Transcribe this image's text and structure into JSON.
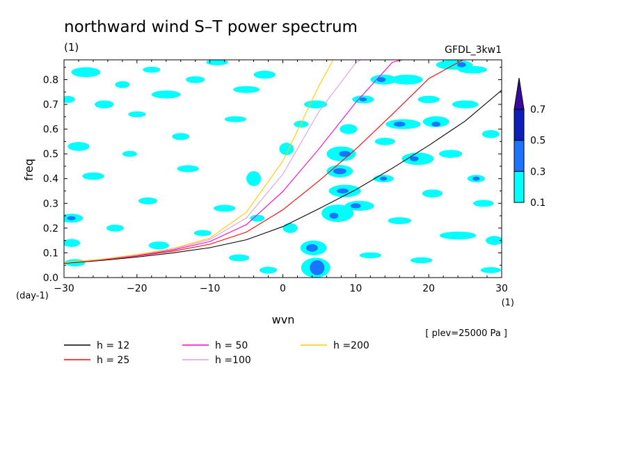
{
  "chart_data": {
    "type": "heatmap",
    "title": "northward wind S–T power spectrum",
    "unit_label": "(1)",
    "model_label": "GFDL_3kw1",
    "xlabel": "wvn",
    "ylabel": "freq",
    "x_unit": "(1)",
    "y_unit": "(day-1)",
    "level_label": "[ plev=25000 Pa ]",
    "xlim": [
      -30,
      30
    ],
    "ylim": [
      0,
      0.88
    ],
    "x_ticks": [
      -30,
      -20,
      -10,
      0,
      10,
      20,
      30
    ],
    "x_tick_labels": [
      "−30",
      "−20",
      "−10",
      "0",
      "10",
      "20",
      "30"
    ],
    "y_ticks": [
      0.0,
      0.1,
      0.2,
      0.3,
      0.4,
      0.5,
      0.6,
      0.7,
      0.8
    ],
    "y_tick_labels": [
      "0.0",
      "0.1",
      "0.2",
      "0.3",
      "0.4",
      "0.5",
      "0.6",
      "0.7",
      "0.8"
    ],
    "colorbar": {
      "levels": [
        "0.1",
        "0.3",
        "0.5",
        "0.7"
      ],
      "colors": [
        "#00ffff",
        "#1a74ff",
        "#0b1fb8",
        "#3a0aa0"
      ],
      "extend": "max"
    },
    "contour_blobs": [
      {
        "x": 4.7,
        "y": 0.04,
        "rx": 1.0,
        "ry": 0.03,
        "level": 2
      },
      {
        "x": 4.5,
        "y": 0.04,
        "rx": 2.0,
        "ry": 0.04,
        "level": 1
      },
      {
        "x": 4.0,
        "y": 0.12,
        "rx": 0.8,
        "ry": 0.015,
        "level": 2
      },
      {
        "x": 4.2,
        "y": 0.12,
        "rx": 1.8,
        "ry": 0.03,
        "level": 1
      },
      {
        "x": 7.8,
        "y": 0.43,
        "rx": 0.9,
        "ry": 0.012,
        "level": 2
      },
      {
        "x": 7.8,
        "y": 0.43,
        "rx": 1.8,
        "ry": 0.025,
        "level": 1
      },
      {
        "x": 8.5,
        "y": 0.5,
        "rx": 0.8,
        "ry": 0.012,
        "level": 2
      },
      {
        "x": 8.0,
        "y": 0.5,
        "rx": 2.0,
        "ry": 0.03,
        "level": 1
      },
      {
        "x": 8.2,
        "y": 0.35,
        "rx": 0.8,
        "ry": 0.01,
        "level": 2
      },
      {
        "x": 8.5,
        "y": 0.35,
        "rx": 2.2,
        "ry": 0.025,
        "level": 1
      },
      {
        "x": 7.0,
        "y": 0.25,
        "rx": 0.6,
        "ry": 0.012,
        "level": 2
      },
      {
        "x": 7.5,
        "y": 0.26,
        "rx": 2.2,
        "ry": 0.035,
        "level": 1
      },
      {
        "x": 13.5,
        "y": 0.8,
        "rx": 0.6,
        "ry": 0.01,
        "level": 2
      },
      {
        "x": 13.8,
        "y": 0.8,
        "rx": 1.8,
        "ry": 0.02,
        "level": 1
      },
      {
        "x": 16.0,
        "y": 0.62,
        "rx": 0.8,
        "ry": 0.01,
        "level": 2
      },
      {
        "x": 16.5,
        "y": 0.62,
        "rx": 2.4,
        "ry": 0.02,
        "level": 1
      },
      {
        "x": 21.0,
        "y": 0.62,
        "rx": 0.6,
        "ry": 0.01,
        "level": 2
      },
      {
        "x": 21.0,
        "y": 0.63,
        "rx": 1.8,
        "ry": 0.022,
        "level": 1
      },
      {
        "x": 24.5,
        "y": 0.86,
        "rx": 0.6,
        "ry": 0.01,
        "level": 2
      },
      {
        "x": 23.5,
        "y": 0.86,
        "rx": 2.5,
        "ry": 0.02,
        "level": 1
      },
      {
        "x": 18.0,
        "y": 0.48,
        "rx": 0.6,
        "ry": 0.01,
        "level": 2
      },
      {
        "x": 18.5,
        "y": 0.48,
        "rx": 2.2,
        "ry": 0.025,
        "level": 1
      },
      {
        "x": 26.5,
        "y": 0.4,
        "rx": 0.5,
        "ry": 0.008,
        "level": 2
      },
      {
        "x": 26.5,
        "y": 0.4,
        "rx": 1.2,
        "ry": 0.015,
        "level": 1
      },
      {
        "x": 13.8,
        "y": 0.4,
        "rx": 0.5,
        "ry": 0.008,
        "level": 2
      },
      {
        "x": 13.8,
        "y": 0.4,
        "rx": 1.4,
        "ry": 0.015,
        "level": 1
      },
      {
        "x": 10.0,
        "y": 0.29,
        "rx": 0.7,
        "ry": 0.01,
        "level": 2
      },
      {
        "x": 10.5,
        "y": 0.29,
        "rx": 2.0,
        "ry": 0.02,
        "level": 1
      },
      {
        "x": -29.0,
        "y": 0.24,
        "rx": 0.6,
        "ry": 0.008,
        "level": 2
      },
      {
        "x": -29.0,
        "y": 0.24,
        "rx": 1.6,
        "ry": 0.018,
        "level": 1
      },
      {
        "x": 11.0,
        "y": 0.72,
        "rx": 0.5,
        "ry": 0.008,
        "level": 2
      },
      {
        "x": 11.0,
        "y": 0.72,
        "rx": 1.5,
        "ry": 0.016,
        "level": 1
      },
      {
        "x": -27.0,
        "y": 0.83,
        "rx": 2.0,
        "ry": 0.02,
        "level": 1
      },
      {
        "x": -22.0,
        "y": 0.78,
        "rx": 1.0,
        "ry": 0.014,
        "level": 1
      },
      {
        "x": -29.5,
        "y": 0.72,
        "rx": 1.0,
        "ry": 0.014,
        "level": 1
      },
      {
        "x": -28.0,
        "y": 0.53,
        "rx": 1.5,
        "ry": 0.018,
        "level": 1
      },
      {
        "x": -26.0,
        "y": 0.41,
        "rx": 1.5,
        "ry": 0.015,
        "level": 1
      },
      {
        "x": -29.0,
        "y": 0.14,
        "rx": 1.2,
        "ry": 0.016,
        "level": 1
      },
      {
        "x": -28.5,
        "y": 0.06,
        "rx": 1.4,
        "ry": 0.015,
        "level": 1
      },
      {
        "x": -24.5,
        "y": 0.7,
        "rx": 1.3,
        "ry": 0.016,
        "level": 1
      },
      {
        "x": -18.0,
        "y": 0.84,
        "rx": 1.2,
        "ry": 0.012,
        "level": 1
      },
      {
        "x": -16.0,
        "y": 0.74,
        "rx": 2.0,
        "ry": 0.016,
        "level": 1
      },
      {
        "x": -12.0,
        "y": 0.8,
        "rx": 1.3,
        "ry": 0.014,
        "level": 1
      },
      {
        "x": -20.0,
        "y": 0.66,
        "rx": 1.2,
        "ry": 0.012,
        "level": 1
      },
      {
        "x": -14.0,
        "y": 0.57,
        "rx": 1.2,
        "ry": 0.014,
        "level": 1
      },
      {
        "x": -21.0,
        "y": 0.5,
        "rx": 1.0,
        "ry": 0.012,
        "level": 1
      },
      {
        "x": -13.0,
        "y": 0.44,
        "rx": 1.5,
        "ry": 0.014,
        "level": 1
      },
      {
        "x": -18.5,
        "y": 0.31,
        "rx": 1.3,
        "ry": 0.014,
        "level": 1
      },
      {
        "x": -23.0,
        "y": 0.2,
        "rx": 1.2,
        "ry": 0.014,
        "level": 1
      },
      {
        "x": -17.0,
        "y": 0.13,
        "rx": 1.4,
        "ry": 0.016,
        "level": 1
      },
      {
        "x": -9.0,
        "y": 0.87,
        "rx": 1.5,
        "ry": 0.012,
        "level": 1
      },
      {
        "x": -5.0,
        "y": 0.76,
        "rx": 1.8,
        "ry": 0.014,
        "level": 1
      },
      {
        "x": -2.5,
        "y": 0.82,
        "rx": 1.5,
        "ry": 0.016,
        "level": 1
      },
      {
        "x": -6.5,
        "y": 0.64,
        "rx": 1.5,
        "ry": 0.012,
        "level": 1
      },
      {
        "x": 0.5,
        "y": 0.52,
        "rx": 1.0,
        "ry": 0.025,
        "level": 1
      },
      {
        "x": -4.0,
        "y": 0.4,
        "rx": 1.0,
        "ry": 0.03,
        "level": 1
      },
      {
        "x": -8.0,
        "y": 0.28,
        "rx": 1.5,
        "ry": 0.014,
        "level": 1
      },
      {
        "x": -11.0,
        "y": 0.18,
        "rx": 1.2,
        "ry": 0.012,
        "level": 1
      },
      {
        "x": -6.0,
        "y": 0.08,
        "rx": 1.4,
        "ry": 0.014,
        "level": 1
      },
      {
        "x": -2.0,
        "y": 0.03,
        "rx": 1.2,
        "ry": 0.014,
        "level": 1
      },
      {
        "x": 1.0,
        "y": 0.2,
        "rx": 1.0,
        "ry": 0.02,
        "level": 1
      },
      {
        "x": 4.5,
        "y": 0.7,
        "rx": 1.6,
        "ry": 0.016,
        "level": 1
      },
      {
        "x": 2.5,
        "y": 0.62,
        "rx": 1.0,
        "ry": 0.014,
        "level": 1
      },
      {
        "x": 17.0,
        "y": 0.8,
        "rx": 2.2,
        "ry": 0.02,
        "level": 1
      },
      {
        "x": 20.0,
        "y": 0.72,
        "rx": 1.5,
        "ry": 0.015,
        "level": 1
      },
      {
        "x": 25.0,
        "y": 0.7,
        "rx": 1.8,
        "ry": 0.016,
        "level": 1
      },
      {
        "x": 28.5,
        "y": 0.58,
        "rx": 1.2,
        "ry": 0.016,
        "level": 1
      },
      {
        "x": 23.0,
        "y": 0.5,
        "rx": 1.6,
        "ry": 0.016,
        "level": 1
      },
      {
        "x": 14.0,
        "y": 0.55,
        "rx": 1.4,
        "ry": 0.015,
        "level": 1
      },
      {
        "x": 20.5,
        "y": 0.34,
        "rx": 1.4,
        "ry": 0.016,
        "level": 1
      },
      {
        "x": 27.5,
        "y": 0.3,
        "rx": 1.4,
        "ry": 0.014,
        "level": 1
      },
      {
        "x": 16.0,
        "y": 0.23,
        "rx": 1.6,
        "ry": 0.014,
        "level": 1
      },
      {
        "x": 24.0,
        "y": 0.17,
        "rx": 2.5,
        "ry": 0.016,
        "level": 1
      },
      {
        "x": 29.0,
        "y": 0.15,
        "rx": 1.2,
        "ry": 0.018,
        "level": 1
      },
      {
        "x": 12.0,
        "y": 0.09,
        "rx": 1.5,
        "ry": 0.012,
        "level": 1
      },
      {
        "x": 19.0,
        "y": 0.07,
        "rx": 1.5,
        "ry": 0.012,
        "level": 1
      },
      {
        "x": 28.5,
        "y": 0.03,
        "rx": 1.4,
        "ry": 0.012,
        "level": 1
      },
      {
        "x": 9.0,
        "y": 0.6,
        "rx": 1.2,
        "ry": 0.02,
        "level": 1
      },
      {
        "x": 26.0,
        "y": 0.84,
        "rx": 2.0,
        "ry": 0.015,
        "level": 1
      },
      {
        "x": -3.5,
        "y": 0.24,
        "rx": 1.0,
        "ry": 0.014,
        "level": 1
      }
    ],
    "series": [
      {
        "name": "h = 12",
        "color": "#000000",
        "x": [
          -30,
          -25,
          -20,
          -15,
          -10,
          -5,
          0,
          5,
          10,
          15,
          20,
          25,
          30
        ],
        "y": [
          0.058,
          0.069,
          0.083,
          0.1,
          0.121,
          0.153,
          0.206,
          0.279,
          0.355,
          0.442,
          0.534,
          0.633,
          0.757
        ]
      },
      {
        "name": "h = 25",
        "color": "#ff0000",
        "x": [
          -30,
          -25,
          -20,
          -15,
          -10,
          -5,
          0,
          5,
          10,
          15,
          20,
          25
        ],
        "y": [
          0.059,
          0.071,
          0.087,
          0.107,
          0.135,
          0.184,
          0.274,
          0.392,
          0.519,
          0.66,
          0.804,
          0.885
        ]
      },
      {
        "name": "h = 50",
        "color": "#ff00cc",
        "x": [
          -30,
          -25,
          -20,
          -15,
          -10,
          -5,
          0,
          5,
          10,
          15,
          17
        ],
        "y": [
          0.06,
          0.072,
          0.089,
          0.112,
          0.146,
          0.214,
          0.348,
          0.522,
          0.708,
          0.87,
          0.885
        ]
      },
      {
        "name": "h =100",
        "color": "#dda0dd",
        "x": [
          -30,
          -25,
          -20,
          -15,
          -10,
          -5,
          0,
          5,
          10,
          11
        ],
        "y": [
          0.06,
          0.073,
          0.091,
          0.115,
          0.154,
          0.241,
          0.418,
          0.673,
          0.868,
          0.885
        ]
      },
      {
        "name": "h =200",
        "color": "#ffcc00",
        "x": [
          -30,
          -25,
          -20,
          -15,
          -10,
          -5,
          0,
          5,
          7
        ],
        "y": [
          0.061,
          0.074,
          0.093,
          0.118,
          0.16,
          0.264,
          0.471,
          0.778,
          0.885
        ]
      }
    ],
    "legend": {
      "placement": "bottom",
      "entries": [
        {
          "label": "h = 12",
          "color": "#000000"
        },
        {
          "label": "h = 25",
          "color": "#ff0000"
        },
        {
          "label": "h = 50",
          "color": "#ff00cc"
        },
        {
          "label": "h =100",
          "color": "#dda0dd"
        },
        {
          "label": "h =200",
          "color": "#ffcc00"
        }
      ]
    },
    "grid": false
  }
}
